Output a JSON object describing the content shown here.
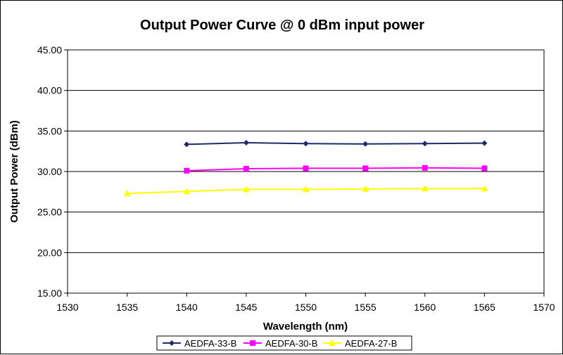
{
  "chart_data": {
    "type": "line",
    "title": "Output Power Curve @ 0 dBm input power",
    "xlabel": "Wavelength (nm)",
    "ylabel": "Output Power (dBm)",
    "xlim": [
      1530,
      1570
    ],
    "ylim": [
      15,
      45
    ],
    "x_ticks": [
      "1530",
      "1535",
      "1540",
      "1545",
      "1550",
      "1555",
      "1560",
      "1565",
      "1570"
    ],
    "y_ticks": [
      "15.00",
      "20.00",
      "25.00",
      "30.00",
      "35.00",
      "40.00",
      "45.00"
    ],
    "grid": "horizontal",
    "legend_position": "bottom",
    "series": [
      {
        "name": "AEDFA-33-B",
        "color": "#1F2A6B",
        "marker": "diamond",
        "x": [
          1540,
          1545,
          1550,
          1555,
          1560,
          1565
        ],
        "y": [
          33.35,
          33.55,
          33.45,
          33.4,
          33.45,
          33.5
        ]
      },
      {
        "name": "AEDFA-30-B",
        "color": "#FF00FF",
        "marker": "square",
        "x": [
          1540,
          1545,
          1550,
          1555,
          1560,
          1565
        ],
        "y": [
          30.1,
          30.35,
          30.4,
          30.4,
          30.45,
          30.4
        ]
      },
      {
        "name": "AEDFA-27-B",
        "color": "#FFFF00",
        "marker": "triangle",
        "x": [
          1535,
          1540,
          1545,
          1550,
          1555,
          1560,
          1565
        ],
        "y": [
          27.3,
          27.55,
          27.8,
          27.8,
          27.85,
          27.9,
          27.9
        ]
      }
    ]
  }
}
